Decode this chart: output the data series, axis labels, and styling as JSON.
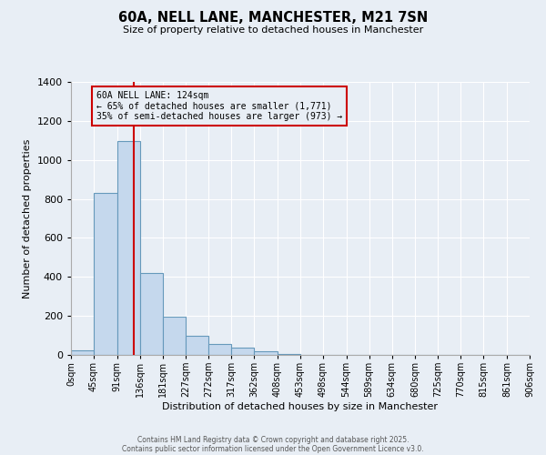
{
  "title": "60A, NELL LANE, MANCHESTER, M21 7SN",
  "subtitle": "Size of property relative to detached houses in Manchester",
  "xlabel": "Distribution of detached houses by size in Manchester",
  "ylabel": "Number of detached properties",
  "bin_edges": [
    0,
    45,
    91,
    136,
    181,
    227,
    272,
    317,
    362,
    408,
    453,
    498,
    544,
    589,
    634,
    680,
    725,
    770,
    815,
    861,
    906
  ],
  "bin_labels": [
    "0sqm",
    "45sqm",
    "91sqm",
    "136sqm",
    "181sqm",
    "227sqm",
    "272sqm",
    "317sqm",
    "362sqm",
    "408sqm",
    "453sqm",
    "498sqm",
    "544sqm",
    "589sqm",
    "634sqm",
    "680sqm",
    "725sqm",
    "770sqm",
    "815sqm",
    "861sqm",
    "906sqm"
  ],
  "counts": [
    25,
    830,
    1095,
    420,
    195,
    100,
    58,
    38,
    18,
    5,
    2,
    1,
    0,
    0,
    0,
    0,
    0,
    0,
    0,
    0
  ],
  "bar_color": "#c5d8ed",
  "bar_edge_color": "#6699bb",
  "background_color": "#e8eef5",
  "grid_color": "#ffffff",
  "property_line_x": 124,
  "property_line_color": "#cc0000",
  "annotation_title": "60A NELL LANE: 124sqm",
  "annotation_line1": "← 65% of detached houses are smaller (1,771)",
  "annotation_line2": "35% of semi-detached houses are larger (973) →",
  "annotation_box_color": "#cc0000",
  "ylim": [
    0,
    1400
  ],
  "yticks": [
    0,
    200,
    400,
    600,
    800,
    1000,
    1200,
    1400
  ],
  "footnote1": "Contains HM Land Registry data © Crown copyright and database right 2025.",
  "footnote2": "Contains public sector information licensed under the Open Government Licence v3.0."
}
